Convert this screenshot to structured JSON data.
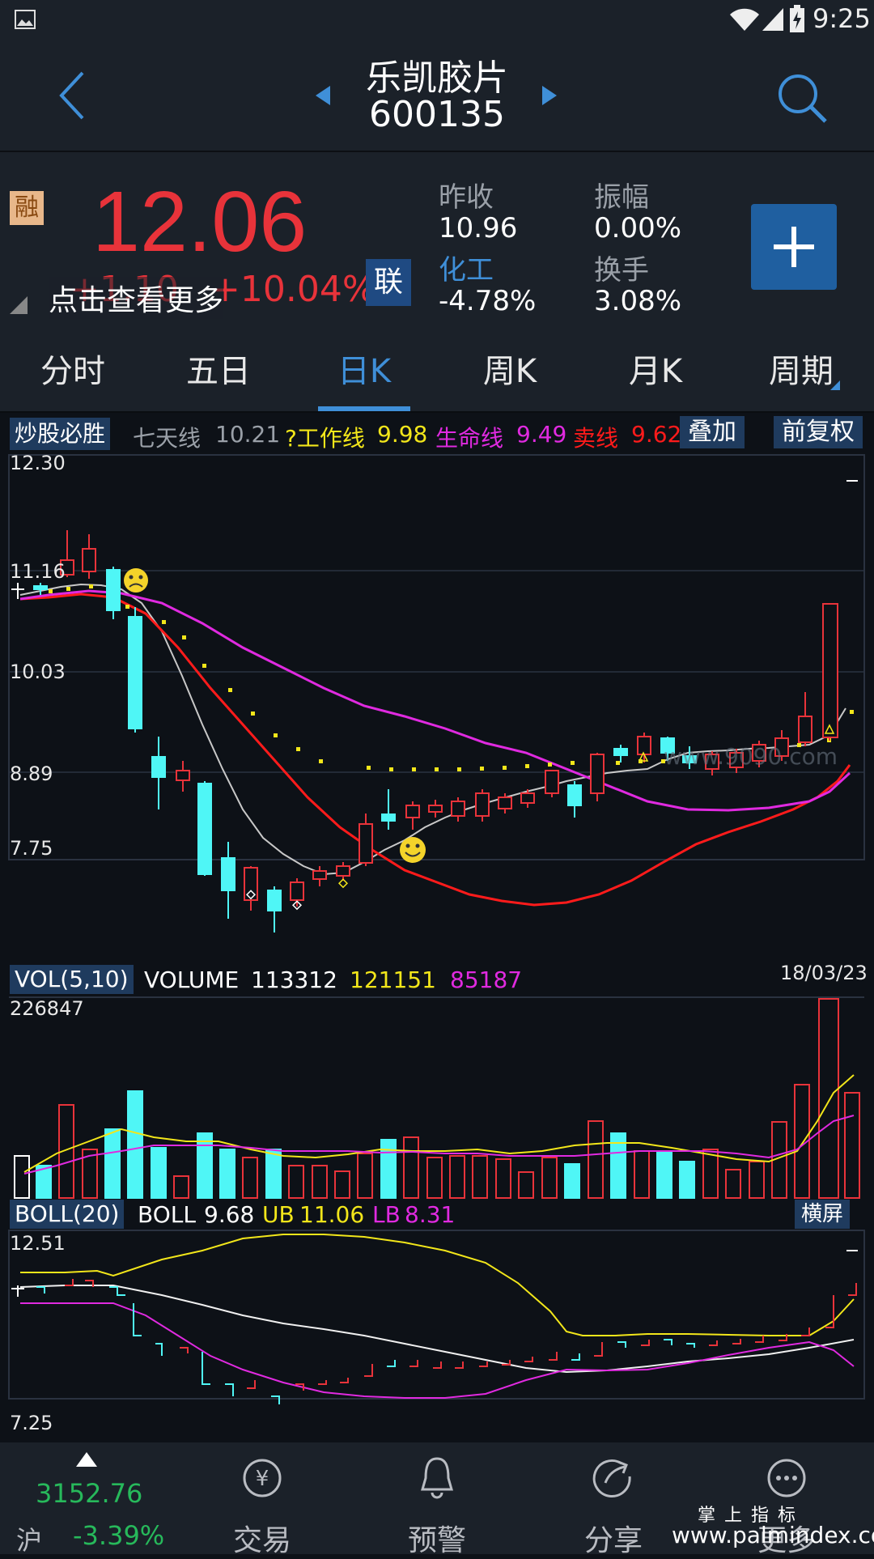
{
  "status_bar": {
    "time": "9:25"
  },
  "header": {
    "stock_name": "乐凯胶片",
    "stock_code": "600135"
  },
  "quote": {
    "badge_rong": "融",
    "price": "12.06",
    "change": "+1.10",
    "change_pct": "+10.04%",
    "lian_badge": "联",
    "more_link": "点击查看更多",
    "stats": {
      "prev_close_label": "昨收",
      "prev_close": "10.96",
      "amplitude_label": "振幅",
      "amplitude": "0.00%",
      "sector_label": "化工",
      "sector_change": "-4.78%",
      "turnover_label": "换手",
      "turnover": "3.08%"
    }
  },
  "tabs": [
    {
      "label": "分时"
    },
    {
      "label": "五日"
    },
    {
      "label": "日K"
    },
    {
      "label": "周K"
    },
    {
      "label": "月K"
    },
    {
      "label": "周期"
    }
  ],
  "indicator_bar": {
    "tag": "炒股必胜",
    "ma7_label": "七天线",
    "ma7": "10.21",
    "work_label": "?工作线",
    "work": "9.98",
    "life_label": "生命线",
    "life": "9.49",
    "sell_label": "卖线",
    "sell": "9.62",
    "overlay_button": "叠加",
    "fq_button": "前复权"
  },
  "kline_axis": {
    "y1": "12.30",
    "y2": "11.16",
    "y3": "10.03",
    "y4": "8.89",
    "y5": "7.75"
  },
  "watermark": "www.9090.com",
  "volume_bar": {
    "tag": "VOL(5,10)",
    "volume_label": "VOLUME",
    "volume": "113312",
    "ma5": "121151",
    "ma10": "85187",
    "date": "18/03/23",
    "max": "226847"
  },
  "boll_bar": {
    "tag": "BOLL(20)",
    "boll_label": "BOLL",
    "boll": "9.68",
    "ub_label": "UB",
    "ub": "11.06",
    "lb_label": "LB",
    "lb": "8.31",
    "landscape_button": "横屏",
    "y_top": "12.51",
    "y_bottom": "7.25"
  },
  "bottom_nav": {
    "index_value": "3152.76",
    "index_market": "沪",
    "index_change": "-3.39%",
    "trade": "交易",
    "alert": "预警",
    "share": "分享",
    "more": "更多",
    "brand_cn": "掌 上 指 标",
    "brand_url": "www.palmindex.com"
  },
  "colors": {
    "up": "#e8333a",
    "down": "#4ff6f6",
    "accent": "#3f8fd8",
    "ma_yellow": "#f2e61a",
    "ma_magenta": "#e02ae0",
    "ma_red": "#ff1b1b",
    "index_green": "#27b95b"
  },
  "icons": [
    "back-arrow-icon",
    "search-icon",
    "prev-stock-icon",
    "next-stock-icon",
    "add-icon",
    "trade-yuan-icon",
    "bell-icon",
    "share-icon",
    "more-dots-icon",
    "wifi-icon",
    "signal-icon",
    "battery-icon",
    "image-icon"
  ]
}
